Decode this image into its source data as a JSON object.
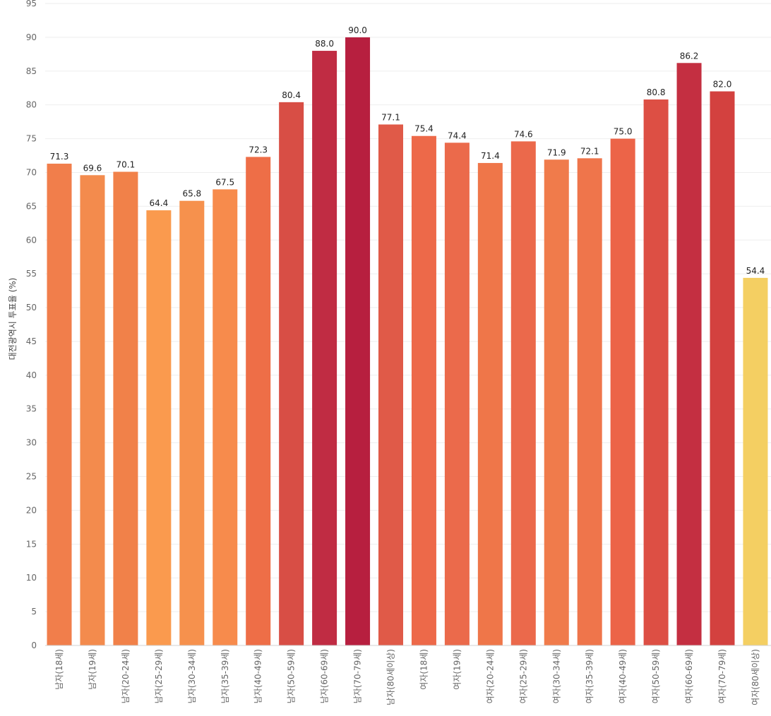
{
  "chart_data": {
    "type": "bar",
    "title": "",
    "xlabel": "",
    "ylabel": "대전광역시 투표율 (%)",
    "ylim": [
      0,
      95
    ],
    "yticks": [
      0,
      5,
      10,
      15,
      20,
      25,
      30,
      35,
      40,
      45,
      50,
      55,
      60,
      65,
      70,
      75,
      80,
      85,
      90,
      95
    ],
    "grid": true,
    "legend": "none",
    "categories": [
      "남자(18세)",
      "남자(19세)",
      "남자(20-24세)",
      "남자(25-29세)",
      "남자(30-34세)",
      "남자(35-39세)",
      "남자(40-49세)",
      "남자(50-59세)",
      "남자(60-69세)",
      "남자(70-79세)",
      "남자(80세이상)",
      "여자(18세)",
      "여자(19세)",
      "여자(20-24세)",
      "여자(25-29세)",
      "여자(30-34세)",
      "여자(35-39세)",
      "여자(40-49세)",
      "여자(50-59세)",
      "여자(60-69세)",
      "여자(70-79세)",
      "여자(80세이상)"
    ],
    "values": [
      71.3,
      69.6,
      70.1,
      64.4,
      65.8,
      67.5,
      72.3,
      80.4,
      88.0,
      90.0,
      77.1,
      75.4,
      74.4,
      71.4,
      74.6,
      71.9,
      72.1,
      75.0,
      80.8,
      86.2,
      82.0,
      54.4
    ],
    "value_labels": [
      "71.3",
      "69.6",
      "70.1",
      "64.4",
      "65.8",
      "67.5",
      "72.3",
      "80.4",
      "88.0",
      "90.0",
      "77.1",
      "75.4",
      "74.4",
      "71.4",
      "74.6",
      "71.9",
      "72.1",
      "75.0",
      "80.8",
      "86.2",
      "82.0",
      "54.4"
    ],
    "colors": [
      "#f17e4b",
      "#f38b4d",
      "#f18149",
      "#fa9a4e",
      "#f6914d",
      "#f78b4c",
      "#ee6e47",
      "#d84e45",
      "#c02c43",
      "#b71f3f",
      "#e05a48",
      "#ed6949",
      "#eb6a4b",
      "#ef7649",
      "#eb694b",
      "#f07b4b",
      "#ef754b",
      "#ec6448",
      "#dd4f44",
      "#c42f41",
      "#d3413f",
      "#f4cf62"
    ]
  }
}
